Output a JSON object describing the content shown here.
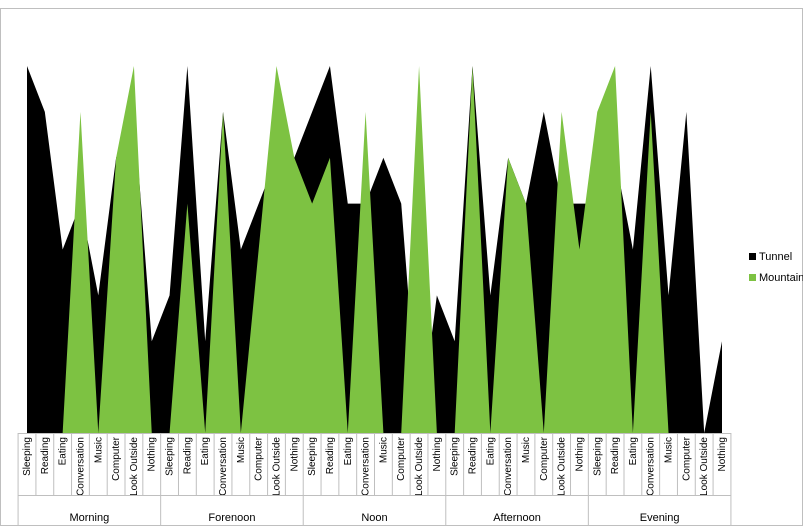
{
  "chart_data": {
    "type": "area",
    "categories": [
      "Sleeping",
      "Reading",
      "Eating",
      "Conversation",
      "Music",
      "Computer",
      "Look Outside",
      "Nothing",
      "Sleeping",
      "Reading",
      "Eating",
      "Conversation",
      "Music",
      "Computer",
      "Look Outside",
      "Nothing",
      "Sleeping",
      "Reading",
      "Eating",
      "Conversation",
      "Music",
      "Computer",
      "Look Outside",
      "Nothing",
      "Sleeping",
      "Reading",
      "Eating",
      "Conversation",
      "Music",
      "Computer",
      "Look Outside",
      "Nothing",
      "Sleeping",
      "Reading",
      "Eating",
      "Conversation",
      "Music",
      "Computer",
      "Look Outside",
      "Nothing"
    ],
    "category_groups": [
      "Morning",
      "Forenoon",
      "Noon",
      "Afternoon",
      "Evening"
    ],
    "series": [
      {
        "name": "Tunnel",
        "color": "#000000",
        "values": [
          8,
          7,
          4,
          5,
          3,
          6,
          7,
          2,
          3,
          8,
          2,
          7,
          4,
          5,
          6,
          6,
          7,
          8,
          5,
          5,
          6,
          5,
          0,
          3,
          2,
          8,
          3,
          6,
          5,
          7,
          5,
          5,
          5,
          6,
          4,
          8,
          3,
          7,
          0,
          2
        ]
      },
      {
        "name": "Mountain",
        "color": "#7dc242",
        "values": [
          0,
          0,
          0,
          7,
          0,
          6,
          8,
          0,
          0,
          5,
          0,
          7,
          0,
          4,
          8,
          6,
          5,
          6,
          0,
          7,
          0,
          0,
          8,
          0,
          0,
          8,
          0,
          6,
          5,
          0,
          7,
          4,
          7,
          8,
          0,
          7,
          0,
          0,
          0,
          0
        ]
      }
    ],
    "ylim": [
      0,
      8
    ],
    "legend": "right"
  }
}
